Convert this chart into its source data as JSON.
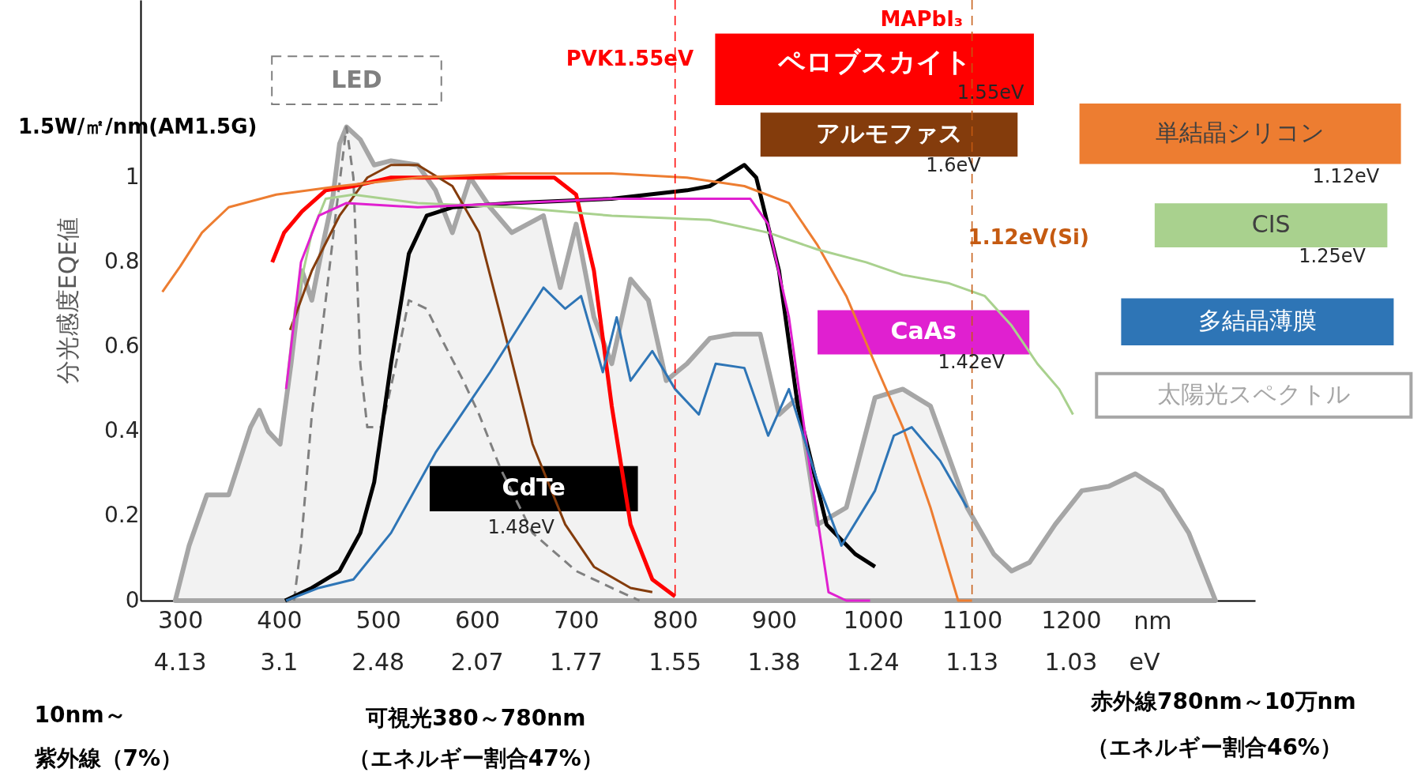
{
  "chart_data": {
    "type": "line",
    "ylabel": "分光感度EQE値",
    "xlim": [
      260,
      1386
    ],
    "ylim": [
      0,
      1.42
    ],
    "xticks": [
      300,
      400,
      500,
      600,
      700,
      800,
      900,
      1000,
      1100,
      1200
    ],
    "yticks": [
      0,
      0.2,
      0.4,
      0.6,
      0.8,
      1
    ],
    "series": [
      {
        "name": "太陽光スペクトル",
        "type": "area",
        "color": "#a6a6a6",
        "x": [
          295,
          309,
          327,
          349,
          371,
          380,
          389,
          401,
          412,
          423,
          433,
          444,
          454,
          461,
          468,
          482,
          496,
          513,
          540,
          558,
          575,
          593,
          613,
          635,
          667,
          684,
          700,
          718,
          736,
          755,
          773,
          791,
          812,
          835,
          859,
          886,
          905,
          924,
          944,
          973,
          1002,
          1030,
          1058,
          1095,
          1122,
          1140,
          1158,
          1184,
          1211,
          1238,
          1265,
          1292,
          1319,
          1346
        ],
        "values": [
          0,
          0.13,
          0.25,
          0.25,
          0.41,
          0.45,
          0.4,
          0.37,
          0.56,
          0.78,
          0.71,
          0.84,
          0.95,
          1.08,
          1.12,
          1.09,
          1.03,
          1.04,
          1.03,
          0.97,
          0.87,
          1.0,
          0.93,
          0.87,
          0.91,
          0.74,
          0.89,
          0.67,
          0.56,
          0.76,
          0.71,
          0.52,
          0.56,
          0.62,
          0.63,
          0.63,
          0.44,
          0.48,
          0.18,
          0.22,
          0.48,
          0.5,
          0.46,
          0.22,
          0.11,
          0.07,
          0.09,
          0.18,
          0.26,
          0.27,
          0.3,
          0.26,
          0.16,
          0
        ]
      },
      {
        "name": "LED",
        "color": "#808080",
        "line_style": "dashed",
        "x": [
          415,
          422,
          433,
          447,
          458,
          468,
          475,
          482,
          489,
          504,
          518,
          531,
          549,
          566,
          586,
          602,
          624,
          656,
          700,
          736,
          764
        ],
        "values": [
          0,
          0.13,
          0.44,
          0.71,
          0.93,
          1.12,
          1.0,
          0.56,
          0.41,
          0.41,
          0.56,
          0.71,
          0.69,
          0.61,
          0.52,
          0.44,
          0.31,
          0.16,
          0.07,
          0.03,
          0
        ]
      },
      {
        "name": "CdTe",
        "color": "#000000",
        "x": [
          406,
          433,
          461,
          482,
          496,
          513,
          531,
          549,
          575,
          635,
          736,
          812,
          835,
          870,
          882,
          905,
          924,
          953,
          982,
          1002
        ],
        "values": [
          0,
          0.03,
          0.07,
          0.16,
          0.28,
          0.56,
          0.82,
          0.91,
          0.93,
          0.94,
          0.95,
          0.97,
          0.98,
          1.03,
          1.0,
          0.78,
          0.46,
          0.18,
          0.11,
          0.08
        ]
      },
      {
        "name": "ペロブスカイト",
        "color": "#ff0000",
        "x": [
          393,
          405,
          423,
          447,
          475,
          513,
          584,
          678,
          700,
          718,
          736,
          755,
          777,
          800
        ],
        "values": [
          0.8,
          0.87,
          0.92,
          0.97,
          0.98,
          1.0,
          1.0,
          1.0,
          0.96,
          0.78,
          0.46,
          0.18,
          0.05,
          0.01
        ]
      },
      {
        "name": "アルモファス",
        "color": "#843c0c",
        "x": [
          411,
          433,
          461,
          489,
          513,
          540,
          575,
          602,
          624,
          656,
          689,
          718,
          755,
          777
        ],
        "values": [
          0.64,
          0.78,
          0.91,
          1.0,
          1.03,
          1.03,
          0.98,
          0.87,
          0.67,
          0.37,
          0.18,
          0.08,
          0.03,
          0.02
        ]
      },
      {
        "name": "単結晶シリコン",
        "color": "#ed7d31",
        "x": [
          282,
          300,
          322,
          349,
          397,
          461,
          540,
          635,
          736,
          812,
          870,
          915,
          944,
          973,
          1002,
          1030,
          1058,
          1086,
          1100
        ],
        "values": [
          0.73,
          0.79,
          0.87,
          0.93,
          0.96,
          0.98,
          1.0,
          1.01,
          1.01,
          1.0,
          0.98,
          0.94,
          0.84,
          0.72,
          0.56,
          0.41,
          0.22,
          0.0,
          0
        ]
      },
      {
        "name": "CIS",
        "color": "#a9d18e",
        "x": [
          407,
          416,
          433,
          447,
          475,
          540,
          635,
          736,
          835,
          894,
          944,
          993,
          1030,
          1077,
          1113,
          1140,
          1166,
          1188,
          1202
        ],
        "values": [
          0.5,
          0.69,
          0.87,
          0.95,
          0.96,
          0.94,
          0.93,
          0.91,
          0.9,
          0.87,
          0.83,
          0.8,
          0.77,
          0.75,
          0.72,
          0.65,
          0.56,
          0.5,
          0.44
        ]
      },
      {
        "name": "CaAs",
        "color": "#e020d0",
        "x": [
          407,
          422,
          440,
          468,
          540,
          635,
          736,
          835,
          876,
          894,
          915,
          934,
          948,
          955,
          973,
          997
        ],
        "values": [
          0.5,
          0.8,
          0.91,
          0.94,
          0.93,
          0.94,
          0.95,
          0.95,
          0.95,
          0.89,
          0.67,
          0.35,
          0.13,
          0.02,
          0,
          0
        ]
      },
      {
        "name": "多結晶薄膜",
        "color": "#2e75b6",
        "x": [
          407,
          440,
          475,
          513,
          558,
          613,
          667,
          689,
          705,
          727,
          741,
          755,
          777,
          800,
          824,
          841,
          870,
          894,
          915,
          944,
          968,
          1002,
          1021,
          1039,
          1068,
          1095
        ],
        "values": [
          0,
          0.03,
          0.05,
          0.16,
          0.35,
          0.54,
          0.74,
          0.69,
          0.72,
          0.54,
          0.67,
          0.52,
          0.59,
          0.5,
          0.44,
          0.56,
          0.55,
          0.39,
          0.5,
          0.28,
          0.13,
          0.26,
          0.39,
          0.41,
          0.33,
          0.22
        ]
      }
    ],
    "ref_lines": [
      {
        "axis": "x",
        "value": 800,
        "label": "PVK1.55eV",
        "color": "#ff0000",
        "line_style": "dashed"
      },
      {
        "axis": "x",
        "value": 1100,
        "label": "1.12eV(Si)",
        "color": "#c55a11",
        "line_style": "dashed"
      }
    ],
    "annotations": [
      "1.5W/㎡/nm(AM1.5G)",
      "MAPbI₃",
      "1.55eV",
      "1.6eV",
      "1.12eV",
      "1.25eV",
      "1.42eV",
      "1.48eV",
      "nm",
      "eV",
      "10nm～",
      "紫外線（7%）",
      "可視光380～780nm",
      "（エネルギー割合47%）",
      "赤外線780nm～10万nm",
      "（エネルギー割合46%）",
      "4.13",
      "3.1",
      "2.48",
      "2.07",
      "1.77",
      "1.55",
      "1.38",
      "1.24",
      "1.13",
      "1.03"
    ]
  }
}
